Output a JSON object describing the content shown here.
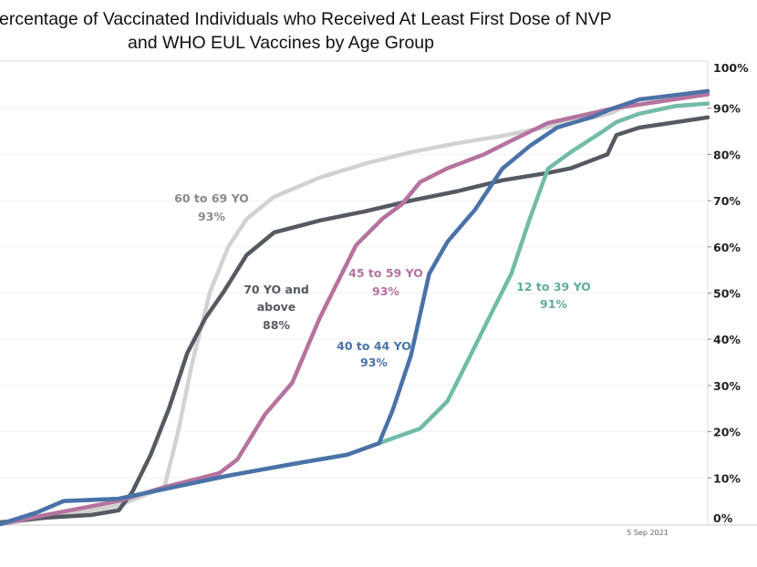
{
  "chart_data": {
    "type": "line",
    "title": [
      "Percentage of Vaccinated Individuals who Received At Least First Dose of NVP",
      "and WHO EUL Vaccines by Age Group"
    ],
    "xlabel": "",
    "ylabel": "",
    "xlim": [
      0,
      155
    ],
    "ylim": [
      0,
      100
    ],
    "x_ticks": [
      {
        "x": 142,
        "label": "5 Sep 2021"
      }
    ],
    "y_ticks": [
      {
        "v": 0,
        "label": "0%"
      },
      {
        "v": 10,
        "label": "10%"
      },
      {
        "v": 20,
        "label": "20%"
      },
      {
        "v": 30,
        "label": "30%"
      },
      {
        "v": 40,
        "label": "40%"
      },
      {
        "v": 50,
        "label": "50%"
      },
      {
        "v": 60,
        "label": "60%"
      },
      {
        "v": 70,
        "label": "70%"
      },
      {
        "v": 80,
        "label": "80%"
      },
      {
        "v": 90,
        "label": "90%"
      },
      {
        "v": 100,
        "label": "100%"
      }
    ],
    "grid": true,
    "series": [
      {
        "name": "60 to 69 YO",
        "final": "93%",
        "color": "#d2d2d2",
        "points": [
          [
            0,
            0
          ],
          [
            10,
            1.4
          ],
          [
            26,
            4
          ],
          [
            36,
            8
          ],
          [
            39,
            20
          ],
          [
            42,
            34.5
          ],
          [
            46,
            50.3
          ],
          [
            50,
            60
          ],
          [
            54,
            66
          ],
          [
            60,
            70.8
          ],
          [
            70,
            75
          ],
          [
            80,
            78
          ],
          [
            90,
            80.5
          ],
          [
            100,
            82.4
          ],
          [
            110,
            84
          ],
          [
            120,
            86
          ],
          [
            130,
            88
          ],
          [
            134,
            89
          ],
          [
            140,
            92
          ],
          [
            155,
            93
          ]
        ]
      },
      {
        "name": "70 YO and above",
        "final": "88%",
        "color": "#555a62",
        "points": [
          [
            0,
            0.4
          ],
          [
            10,
            1.4
          ],
          [
            20,
            2
          ],
          [
            26,
            3
          ],
          [
            29,
            7
          ],
          [
            33,
            15
          ],
          [
            37,
            25
          ],
          [
            41,
            37
          ],
          [
            45,
            44.6
          ],
          [
            49,
            50.3
          ],
          [
            54,
            58.2
          ],
          [
            60,
            63.1
          ],
          [
            70,
            65.7
          ],
          [
            80,
            67.7
          ],
          [
            90,
            70
          ],
          [
            100,
            72
          ],
          [
            110,
            74.4
          ],
          [
            120,
            76
          ],
          [
            125,
            77
          ],
          [
            133,
            80
          ],
          [
            135,
            84.2
          ],
          [
            140,
            85.8
          ],
          [
            155,
            88
          ]
        ]
      },
      {
        "name": "45 to 59 YO",
        "final": "93%",
        "color": "#b5739f",
        "points": [
          [
            0,
            0
          ],
          [
            10,
            2
          ],
          [
            26,
            5
          ],
          [
            36,
            8
          ],
          [
            48,
            11
          ],
          [
            52,
            14
          ],
          [
            58,
            23.7
          ],
          [
            64,
            30.6
          ],
          [
            70,
            44.6
          ],
          [
            78,
            60.4
          ],
          [
            84,
            66.3
          ],
          [
            88,
            69.2
          ],
          [
            92,
            74
          ],
          [
            98,
            77
          ],
          [
            106,
            80
          ],
          [
            112,
            83
          ],
          [
            120,
            86.8
          ],
          [
            130,
            89
          ],
          [
            134,
            89.9
          ],
          [
            155,
            93
          ]
        ]
      },
      {
        "name": "12 to 39 YO",
        "final": "91%",
        "color": "#72bba9",
        "points": [
          [
            0,
            0
          ],
          [
            8,
            2.5
          ],
          [
            14,
            5
          ],
          [
            26,
            5.5
          ],
          [
            38,
            8
          ],
          [
            50,
            10.5
          ],
          [
            64,
            13
          ],
          [
            76,
            15
          ],
          [
            83,
            17.5
          ],
          [
            92,
            20.7
          ],
          [
            98,
            26.6
          ],
          [
            102,
            34.5
          ],
          [
            108,
            46.4
          ],
          [
            112,
            54.2
          ],
          [
            116,
            66
          ],
          [
            120,
            76.9
          ],
          [
            125,
            80.5
          ],
          [
            132,
            85
          ],
          [
            135,
            87
          ],
          [
            140,
            88.8
          ],
          [
            148,
            90.5
          ],
          [
            155,
            91
          ]
        ]
      },
      {
        "name": "40 to 44 YO",
        "final": "93%",
        "color": "#4a72a8",
        "points": [
          [
            0,
            0
          ],
          [
            8,
            2.5
          ],
          [
            14,
            5
          ],
          [
            26,
            5.5
          ],
          [
            38,
            8
          ],
          [
            50,
            10.5
          ],
          [
            64,
            13
          ],
          [
            76,
            15
          ],
          [
            83,
            17.5
          ],
          [
            86,
            24.7
          ],
          [
            90,
            36.5
          ],
          [
            94,
            54.2
          ],
          [
            98,
            61.1
          ],
          [
            104,
            68
          ],
          [
            110,
            76.9
          ],
          [
            116,
            81.8
          ],
          [
            122,
            85.8
          ],
          [
            130,
            88.2
          ],
          [
            134,
            89.9
          ],
          [
            140,
            91.9
          ],
          [
            155,
            93.7
          ]
        ]
      }
    ]
  }
}
